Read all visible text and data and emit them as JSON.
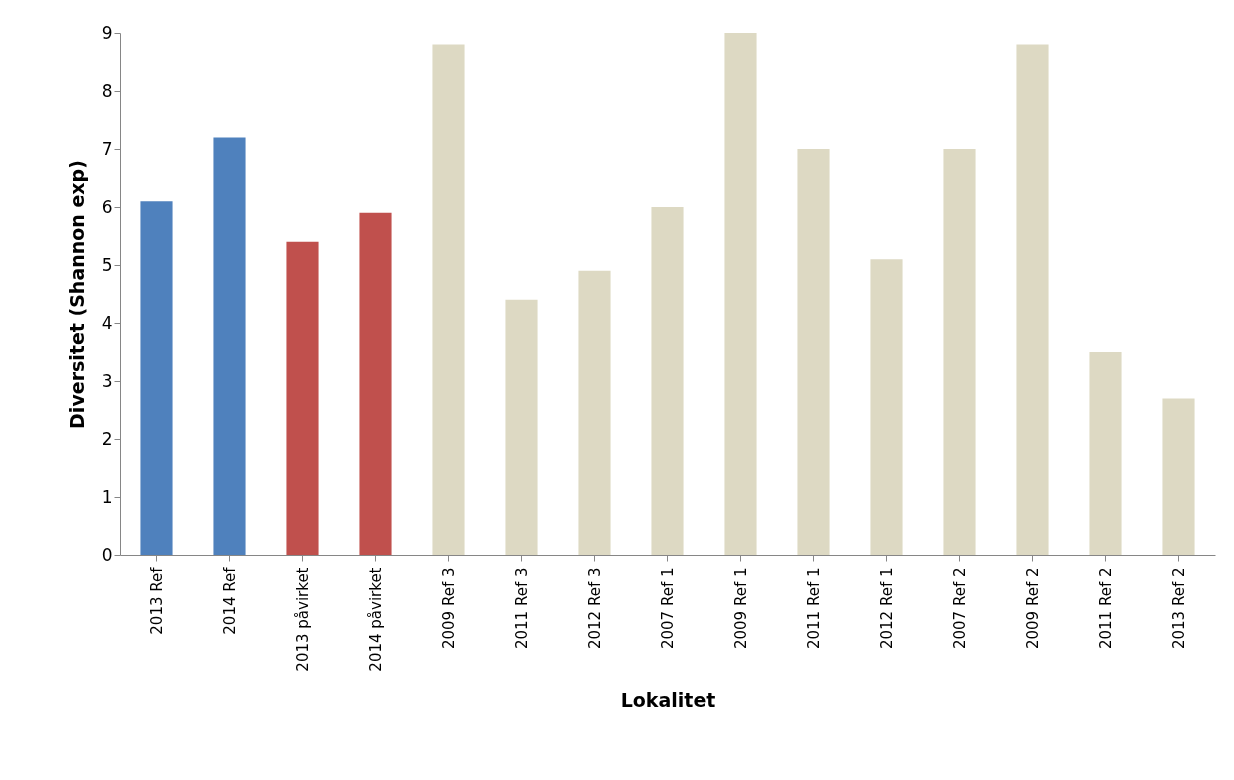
{
  "chart_data": {
    "type": "bar",
    "xlabel": "Lokalitet",
    "ylabel": "Diversitet (Shannon exp)",
    "categories": [
      "2013 Ref",
      "2014 Ref",
      "2013 påvirket",
      "2014 påvirket",
      "2009 Ref 3",
      "2011 Ref 3",
      "2012 Ref 3",
      "2007 Ref 1",
      "2009 Ref 1",
      "2011 Ref 1",
      "2012 Ref 1",
      "2007 Ref 2",
      "2009 Ref 2",
      "2011 Ref 2",
      "2013 Ref 2"
    ],
    "values": [
      6.1,
      7.2,
      5.4,
      5.9,
      8.8,
      4.4,
      4.9,
      6.0,
      9.0,
      7.0,
      5.1,
      7.0,
      8.8,
      3.5,
      2.7
    ],
    "colors": [
      "#4f81bd",
      "#4f81bd",
      "#c0504d",
      "#c0504d",
      "#ddd9c3",
      "#ddd9c3",
      "#ddd9c3",
      "#ddd9c3",
      "#ddd9c3",
      "#ddd9c3",
      "#ddd9c3",
      "#ddd9c3",
      "#ddd9c3",
      "#ddd9c3",
      "#ddd9c3"
    ],
    "ylim": [
      0,
      9
    ],
    "yticks": [
      0,
      1,
      2,
      3,
      4,
      5,
      6,
      7,
      8,
      9
    ],
    "grid": false
  }
}
